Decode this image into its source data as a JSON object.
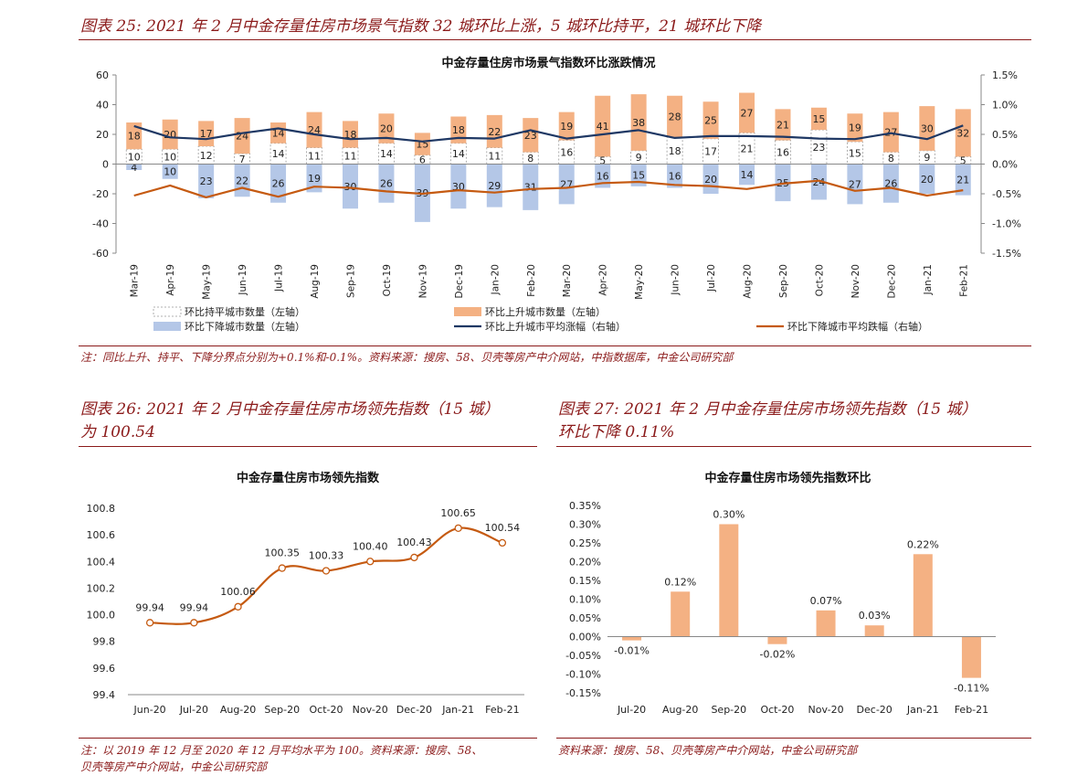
{
  "fig25": {
    "title": "图表 25: 2021 年 2 月中金存量住房市场景气指数 32 城环比上涨，5 城环比持平，21 城环比下降",
    "note": "注：同比上升、持平、下降分界点分别为+0.1%和-0.1%。资料来源：搜房、58、贝壳等房产中介网站，中指数据库，中金公司研究部"
  },
  "fig26": {
    "title_line1": "图表 26: 2021 年 2 月中金存量住房市场领先指数（15 城）",
    "title_line2": "为 100.54",
    "note_line1": "注：以 2019 年 12 月至 2020 年 12 月平均水平为 100。资料来源：搜房、58、",
    "note_line2": "贝壳等房产中介网站，中金公司研究部"
  },
  "fig27": {
    "title_line1": "图表 27: 2021 年 2 月中金存量住房市场领先指数（15 城）",
    "title_line2": "环比下降 0.11%",
    "note": "资料来源：搜房、58、贝壳等房产中介网站，中金公司研究部"
  },
  "chart_data": [
    {
      "type": "bar",
      "title": "中金存量住房市场景气指数环比涨跌情况",
      "categories": [
        "Mar-19",
        "Apr-19",
        "May-19",
        "Jun-19",
        "Jul-19",
        "Aug-19",
        "Sep-19",
        "Oct-19",
        "Nov-19",
        "Dec-19",
        "Jan-20",
        "Feb-20",
        "Mar-20",
        "Apr-20",
        "May-20",
        "Jun-20",
        "Jul-20",
        "Aug-20",
        "Sep-20",
        "Oct-20",
        "Nov-20",
        "Dec-20",
        "Jan-21",
        "Feb-21"
      ],
      "y_left": {
        "min": -60,
        "max": 60,
        "step": 20,
        "ticks": [
          "60",
          "40",
          "20",
          "0",
          "-20",
          "-40",
          "-60"
        ]
      },
      "y_right": {
        "min": -1.5,
        "max": 1.5,
        "step": 0.5,
        "ticks": [
          "1.5%",
          "1.0%",
          "0.5%",
          "0.0%",
          "-0.5%",
          "-1.0%",
          "-1.5%"
        ]
      },
      "series": [
        {
          "name": "环比持平城市数量（左轴）",
          "axis": "left",
          "color": "#ffffff",
          "border": "#999999",
          "values": [
            10,
            10,
            12,
            7,
            14,
            11,
            11,
            14,
            6,
            14,
            11,
            8,
            16,
            5,
            9,
            18,
            17,
            21,
            16,
            23,
            15,
            8,
            9,
            5
          ]
        },
        {
          "name": "环比上升城市数量（左轴）",
          "axis": "left",
          "color": "#f4b183",
          "values": [
            18,
            20,
            17,
            24,
            14,
            24,
            18,
            20,
            15,
            18,
            22,
            23,
            19,
            41,
            38,
            28,
            25,
            27,
            21,
            15,
            19,
            27,
            30,
            32
          ]
        },
        {
          "name": "环比下降城市数量（左轴）",
          "axis": "left",
          "color": "#b4c7e7",
          "values": [
            4,
            10,
            23,
            22,
            26,
            19,
            30,
            26,
            39,
            30,
            29,
            31,
            27,
            16,
            15,
            16,
            20,
            14,
            25,
            24,
            27,
            26,
            20,
            21
          ]
        },
        {
          "name": "环比上升城市平均涨幅（右轴）",
          "axis": "right",
          "type": "line",
          "color": "#1f3864",
          "values": [
            0.64,
            0.45,
            0.42,
            0.52,
            0.6,
            0.5,
            0.42,
            0.44,
            0.38,
            0.44,
            0.43,
            0.57,
            0.43,
            0.5,
            0.57,
            0.44,
            0.47,
            0.47,
            0.46,
            0.43,
            0.42,
            0.52,
            0.42,
            0.65
          ]
        },
        {
          "name": "环比下降城市平均跌幅（右轴）",
          "axis": "right",
          "type": "line",
          "color": "#c55a11",
          "values": [
            -0.53,
            -0.36,
            -0.56,
            -0.4,
            -0.55,
            -0.38,
            -0.4,
            -0.46,
            -0.5,
            -0.44,
            -0.48,
            -0.42,
            -0.4,
            -0.32,
            -0.3,
            -0.35,
            -0.37,
            -0.42,
            -0.33,
            -0.28,
            -0.45,
            -0.4,
            -0.53,
            -0.44
          ]
        }
      ]
    },
    {
      "type": "line",
      "title": "中金存量住房市场领先指数",
      "categories": [
        "Jun-20",
        "Jul-20",
        "Aug-20",
        "Sep-20",
        "Oct-20",
        "Nov-20",
        "Dec-20",
        "Jan-21",
        "Feb-21"
      ],
      "values": [
        99.94,
        99.94,
        100.06,
        100.35,
        100.33,
        100.4,
        100.43,
        100.65,
        100.54
      ],
      "labels": [
        "99.94",
        "99.94",
        "100.06",
        "100.35",
        "100.33",
        "100.40",
        "100.43",
        "100.65",
        "100.54"
      ],
      "ylim": [
        99.4,
        100.8
      ],
      "yticks": [
        "100.8",
        "100.6",
        "100.4",
        "100.2",
        "100.0",
        "99.8",
        "99.6",
        "99.4"
      ],
      "color": "#c55a11"
    },
    {
      "type": "bar",
      "title": "中金存量住房市场领先指数环比",
      "categories": [
        "Jul-20",
        "Aug-20",
        "Sep-20",
        "Oct-20",
        "Nov-20",
        "Dec-20",
        "Jan-21",
        "Feb-21"
      ],
      "values": [
        -0.01,
        0.12,
        0.3,
        -0.02,
        0.07,
        0.03,
        0.22,
        -0.11
      ],
      "labels": [
        "-0.01%",
        "0.12%",
        "0.30%",
        "-0.02%",
        "0.07%",
        "0.03%",
        "0.22%",
        "-0.11%"
      ],
      "ylim": [
        -0.15,
        0.35
      ],
      "yticks": [
        "0.35%",
        "0.30%",
        "0.25%",
        "0.20%",
        "0.15%",
        "0.10%",
        "0.05%",
        "0.00%",
        "-0.05%",
        "-0.10%",
        "-0.15%"
      ],
      "color": "#f4b183"
    }
  ]
}
